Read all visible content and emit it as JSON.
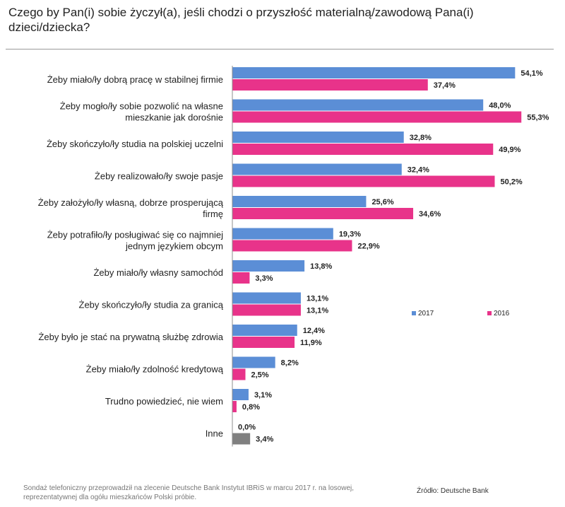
{
  "title": "Czego by Pan(i) sobie życzył(a), jeśli chodzi o przyszłość materialną/zawodową Pana(i) dzieci/dziecka?",
  "footer": {
    "note": "Sondaż telefoniczny przeprowadził na zlecenie Deutsche Bank  Instytut IBRiS w marcu 2017 r. na losowej, reprezentatywnej dla  ogółu mieszkańców Polski próbie.",
    "source": "Źródło: Deutsche Bank"
  },
  "chart_data": {
    "type": "bar",
    "orientation": "horizontal",
    "categories": [
      [
        "Żeby miało/ły dobrą pracę w stabilnej firmie"
      ],
      [
        "Żeby mogło/ły sobie pozwolić na własne",
        "mieszkanie jak dorośnie"
      ],
      [
        "Żeby skończyło/ły studia na polskiej uczelni"
      ],
      [
        "Żeby realizowało/ły swoje pasje"
      ],
      [
        "Żeby założyło/ły własną, dobrze prosperującą",
        "firmę"
      ],
      [
        "Żeby potrafiło/ły posługiwać się co najmniej",
        "jednym językiem obcym"
      ],
      [
        "Żeby miało/ły własny samochód"
      ],
      [
        "Żeby skończyło/ły studia za granicą"
      ],
      [
        "Żeby było je stać na prywatną służbę zdrowia"
      ],
      [
        "Żeby miało/ły zdolność kredytową"
      ],
      [
        "Trudno powiedzieć, nie wiem"
      ],
      [
        "Inne"
      ]
    ],
    "series": [
      {
        "name": "2017",
        "color": "#5b8ed6",
        "values": [
          54.1,
          48.0,
          32.8,
          32.4,
          25.6,
          19.3,
          13.8,
          13.1,
          12.4,
          8.2,
          3.1,
          0.0
        ],
        "labels": [
          "54,1%",
          "48,0%",
          "32,8%",
          "32,4%",
          "25,6%",
          "19,3%",
          "13,8%",
          "13,1%",
          "12,4%",
          "8,2%",
          "3,1%",
          "0,0%"
        ]
      },
      {
        "name": "2016",
        "color": "#e8338a",
        "values": [
          37.4,
          55.3,
          49.9,
          50.2,
          34.6,
          22.9,
          3.3,
          13.1,
          11.9,
          2.5,
          0.8,
          3.4
        ],
        "labels": [
          "37,4%",
          "55,3%",
          "49,9%",
          "50,2%",
          "34,6%",
          "22,9%",
          "3,3%",
          "13,1%",
          "11,9%",
          "2,5%",
          "0,8%",
          "3,4%"
        ]
      }
    ],
    "special_colors": {
      "other_2016": "#808080"
    },
    "axis_color": "#8c8c8c",
    "grid": false,
    "legend_position": "right"
  }
}
